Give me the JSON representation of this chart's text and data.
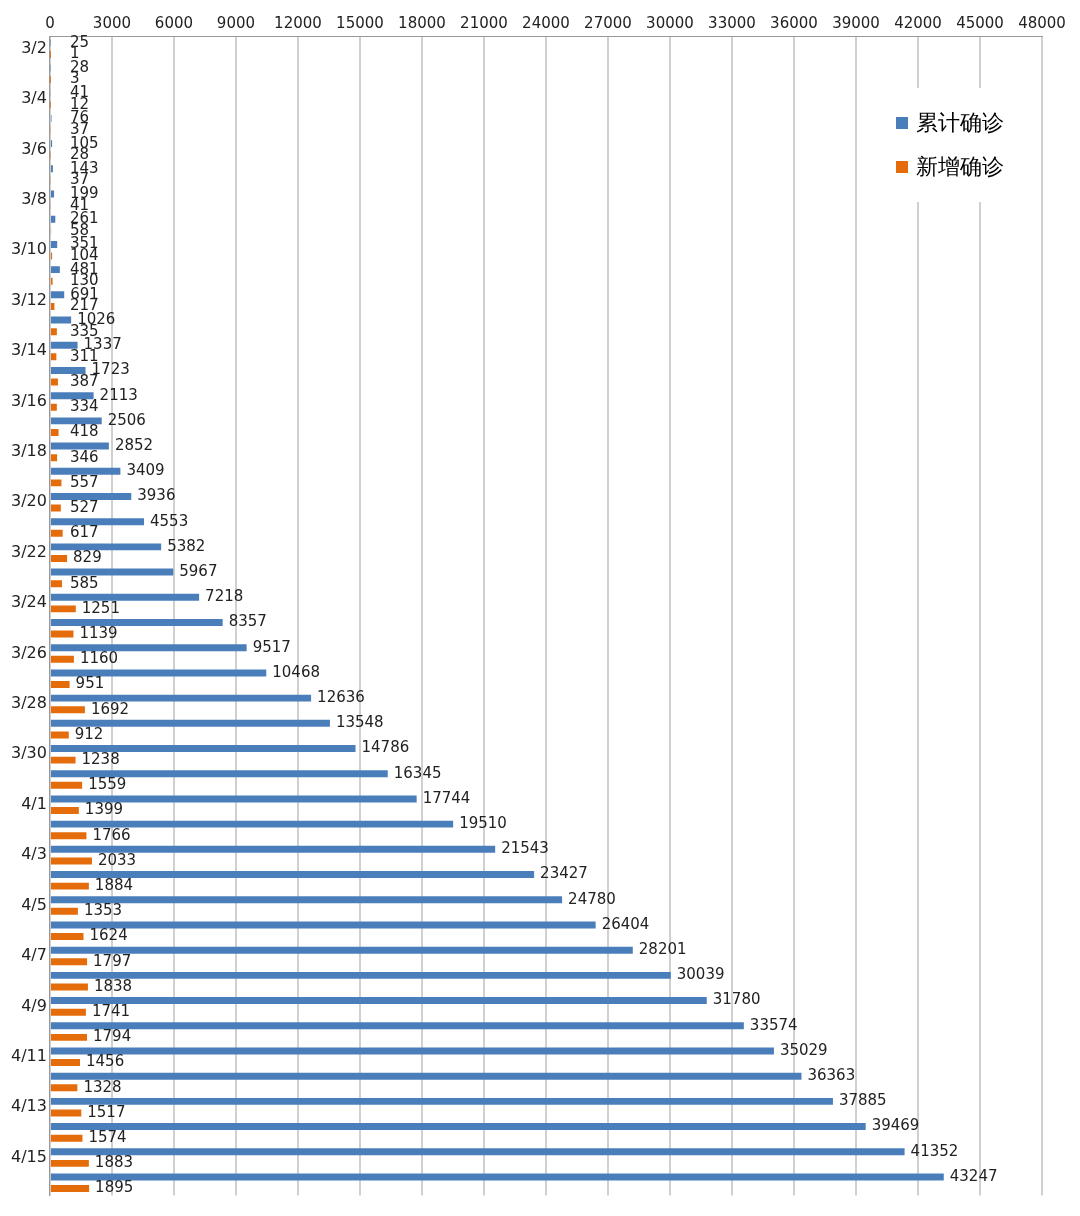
{
  "chart_data": {
    "type": "bar",
    "orientation": "horizontal",
    "categories": [
      "3/2",
      null,
      "3/4",
      null,
      "3/6",
      null,
      "3/8",
      null,
      "3/10",
      null,
      "3/12",
      null,
      "3/14",
      null,
      "3/16",
      null,
      "3/18",
      null,
      "3/20",
      null,
      "3/22",
      null,
      "3/24",
      null,
      "3/26",
      null,
      "3/28",
      null,
      "3/30",
      null,
      "4/1",
      null,
      "4/3",
      null,
      "4/5",
      null,
      "4/7",
      null,
      "4/9",
      null,
      "4/11",
      null,
      "4/13",
      null,
      "4/15",
      null
    ],
    "series": [
      {
        "name": "累计确诊",
        "color": "#4a7ebb",
        "values": [
          25,
          28,
          41,
          76,
          105,
          143,
          199,
          261,
          351,
          481,
          691,
          1026,
          1337,
          1723,
          2113,
          2506,
          2852,
          3409,
          3936,
          4553,
          5382,
          5967,
          7218,
          8357,
          9517,
          10468,
          12636,
          13548,
          14786,
          16345,
          17744,
          19510,
          21543,
          23427,
          24780,
          26404,
          28201,
          30039,
          31780,
          33574,
          35029,
          36363,
          37885,
          39469,
          41352,
          43247
        ]
      },
      {
        "name": "新增确诊",
        "color": "#e46c0a",
        "values": [
          1,
          3,
          12,
          37,
          28,
          37,
          41,
          58,
          104,
          130,
          217,
          335,
          311,
          387,
          334,
          418,
          346,
          557,
          527,
          617,
          829,
          585,
          1251,
          1139,
          1160,
          951,
          1692,
          912,
          1238,
          1559,
          1399,
          1766,
          2033,
          1884,
          1353,
          1624,
          1797,
          1838,
          1741,
          1794,
          1456,
          1328,
          1517,
          1574,
          1883,
          1895
        ]
      }
    ],
    "xlim": [
      0,
      48000
    ],
    "xticks": [
      0,
      3000,
      6000,
      9000,
      12000,
      15000,
      18000,
      21000,
      24000,
      27000,
      30000,
      33000,
      36000,
      39000,
      42000,
      45000,
      48000
    ],
    "grid": "x",
    "legend": "top right",
    "data_labels": true
  }
}
